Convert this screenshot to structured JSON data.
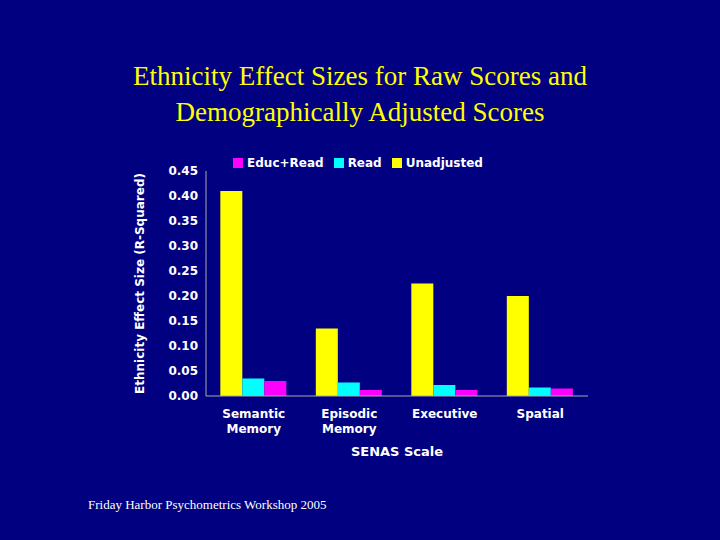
{
  "chart_data": {
    "type": "bar",
    "title": "Ethnicity Effect Sizes for Raw Scores and Demographically Adjusted Scores",
    "annotations": [
      "Friday Harbor Psychometrics Workshop 2005"
    ],
    "categories": [
      "Semantic Memory",
      "Episodic Memory",
      "Executive",
      "Spatial"
    ],
    "series": [
      {
        "name": "Unadjusted",
        "color": "#ffff00",
        "values": [
          0.41,
          0.135,
          0.225,
          0.2
        ]
      },
      {
        "name": "Read",
        "color": "#00ffff",
        "values": [
          0.035,
          0.027,
          0.022,
          0.017
        ]
      },
      {
        "name": "Educ+Read",
        "color": "#ff00ff",
        "values": [
          0.03,
          0.012,
          0.012,
          0.015
        ]
      }
    ],
    "x_label": "SENAS Scale",
    "y_label": "Ethnicity Effect Size (R-Squared)",
    "ylim": [
      0,
      0.45
    ],
    "yticks": [
      {
        "value": 0,
        "label": "0.00"
      },
      0.05,
      {
        "value": 0.1,
        "label": "0.10"
      },
      0.15,
      {
        "value": 0.2,
        "label": "0.20"
      },
      0.25,
      {
        "value": 0.3,
        "label": "0.30"
      },
      0.35,
      {
        "value": 0.4,
        "label": "0.40"
      },
      0.45
    ],
    "legend": "top",
    "grid": false
  }
}
